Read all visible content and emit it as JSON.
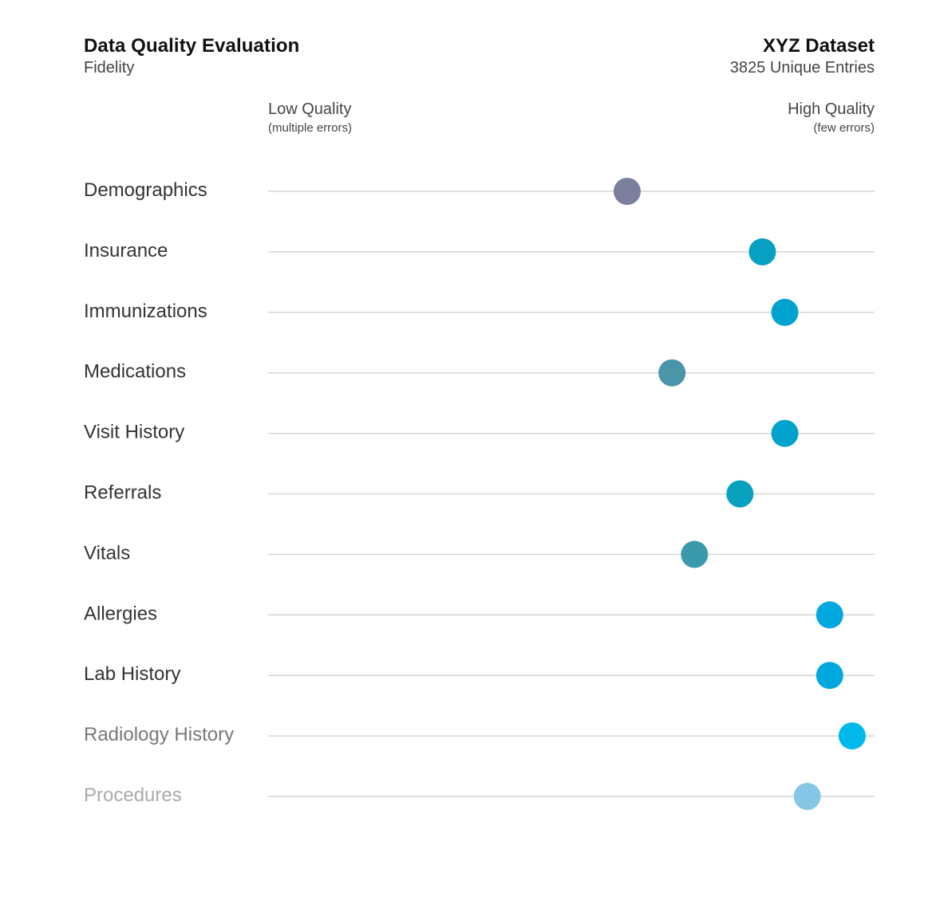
{
  "header": {
    "title": "Data Quality Evaluation",
    "subtitle": "Fidelity",
    "dataset_name": "XYZ Dataset",
    "dataset_entries": "3825 Unique Entries"
  },
  "axis": {
    "low_label": "Low Quality",
    "low_sublabel": "(multiple errors)",
    "high_label": "High Quality",
    "high_sublabel": "(few errors)"
  },
  "chart_data": {
    "type": "scatter",
    "title": "Data Quality Evaluation",
    "subtitle": "Fidelity",
    "xlim": [
      0,
      100
    ],
    "categories": [
      "Demographics",
      "Insurance",
      "Immunizations",
      "Medications",
      "Visit History",
      "Referrals",
      "Vitals",
      "Allergies",
      "Lab History",
      "Radiology History",
      "Procedures"
    ],
    "values": [
      59.2,
      81.5,
      85.2,
      66.6,
      85.2,
      77.8,
      70.3,
      92.6,
      92.6,
      96.3,
      88.9
    ],
    "point_colors": [
      "#7a7f9e",
      "#06a0c2",
      "#00a3cf",
      "#4a95a8",
      "#00a2cb",
      "#07a0bf",
      "#3a9aac",
      "#00a8df",
      "#00a8e0",
      "#00b8ec",
      "#86c7e8"
    ],
    "label_colors": [
      "#333333",
      "#333333",
      "#333333",
      "#333333",
      "#333333",
      "#333333",
      "#333333",
      "#333333",
      "#333333",
      "#777777",
      "#aaaaaa"
    ],
    "grid": false,
    "legend": "none"
  }
}
